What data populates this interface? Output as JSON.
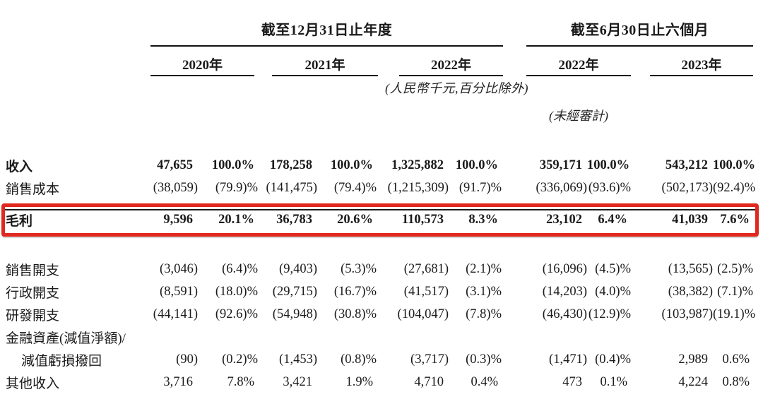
{
  "header": {
    "group_annual": {
      "title": "截至12月31日止年度",
      "years": [
        "2020年",
        "2021年",
        "2022年"
      ]
    },
    "group_interim": {
      "title": "截至6月30日止六個月",
      "years": [
        "2022年",
        "2023年"
      ]
    },
    "unit_note": "(人民幣千元,百分比除外)",
    "unaudited_note": "(未經審計)"
  },
  "colors": {
    "highlight_box": "#e0281e",
    "text": "#1a1a1a"
  },
  "table": {
    "rows": [
      {
        "label": "收入",
        "bold": true,
        "values": [
          "47,655",
          "100.0%",
          "178,258",
          "100.0%",
          "1,325,882",
          "100.0%",
          "359,171",
          "100.0%",
          "543,212",
          "100.0%"
        ]
      },
      {
        "label": "銷售成本",
        "values": [
          "(38,059)",
          "(79.9)%",
          "(141,475)",
          "(79.4)%",
          "(1,215,309)",
          "(91.7)%",
          "(336,069)",
          "(93.6)%",
          "(502,173)",
          "(92.4)%"
        ]
      },
      {
        "label": "毛利",
        "bold": true,
        "highlighted": true,
        "values": [
          "9,596",
          "20.1%",
          "36,783",
          "20.6%",
          "110,573",
          "8.3%",
          "23,102",
          "6.4%",
          "41,039",
          "7.6%"
        ]
      },
      {
        "label": "銷售開支",
        "values": [
          "(3,046)",
          "(6.4)%",
          "(9,403)",
          "(5.3)%",
          "(27,681)",
          "(2.1)%",
          "(16,096)",
          "(4.5)%",
          "(13,565)",
          "(2.5)%"
        ]
      },
      {
        "label": "行政開支",
        "values": [
          "(8,591)",
          "(18.0)%",
          "(29,715)",
          "(16.7)%",
          "(41,517)",
          "(3.1)%",
          "(14,203)",
          "(4.0)%",
          "(38,382)",
          "(7.1)%"
        ]
      },
      {
        "label": "研發開支",
        "values": [
          "(44,141)",
          "(92.6)%",
          "(54,948)",
          "(30.8)%",
          "(104,047)",
          "(7.8)%",
          "(46,430)",
          "(12.9)%",
          "(103,987)",
          "(19.1)%"
        ]
      },
      {
        "label": "金融資產(減值淨額)/",
        "values": [
          "",
          "",
          "",
          "",
          "",
          "",
          "",
          "",
          "",
          ""
        ]
      },
      {
        "label": "減值虧損撥回",
        "indent": true,
        "values": [
          "(90)",
          "(0.2)%",
          "(1,453)",
          "(0.8)%",
          "(3,717)",
          "(0.3)%",
          "(1,471)",
          "(0.4)%",
          "2,989",
          "0.6%"
        ]
      },
      {
        "label": "其他收入",
        "values": [
          "3,716",
          "7.8%",
          "3,421",
          "1.9%",
          "4,710",
          "0.4%",
          "473",
          "0.1%",
          "4,224",
          "0.8%"
        ]
      }
    ]
  }
}
